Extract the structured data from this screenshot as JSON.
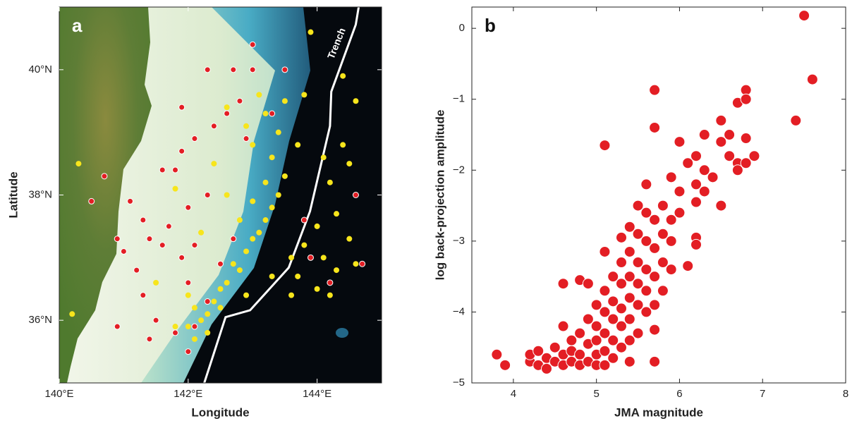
{
  "chart_data": [
    {
      "type": "map",
      "panel_label": "a",
      "xlabel": "Longitude",
      "ylabel": "Latitude",
      "xlim": [
        140,
        145
      ],
      "ylim": [
        35,
        41
      ],
      "xticks": [
        {
          "value": 140,
          "label": "140°E"
        },
        {
          "value": 142,
          "label": "142°E"
        },
        {
          "value": 144,
          "label": "144°E"
        }
      ],
      "yticks": [
        {
          "value": 36,
          "label": "36°N"
        },
        {
          "value": 38,
          "label": "38°N"
        },
        {
          "value": 40,
          "label": "40°N"
        }
      ],
      "trench": {
        "label": "Trench",
        "color": "#ffffff",
        "x": [
          144.645,
          144.6,
          144.22,
          144.2,
          143.89,
          143.56,
          142.96,
          142.58,
          142.25
        ],
        "values": [
          41,
          40.72,
          39.65,
          39.1,
          37.74,
          36.84,
          36.16,
          36.05,
          35.0
        ]
      },
      "series": [
        {
          "color": "#f7e51c",
          "x": [
            142.2,
            142.1,
            142.3,
            142.0,
            142.4,
            142.5,
            142.6,
            142.8,
            142.7,
            142.9,
            143.0,
            143.1,
            143.2,
            143.3,
            143.0,
            143.4,
            143.2,
            143.5,
            143.3,
            143.0,
            142.9,
            143.2,
            143.5,
            143.8,
            142.6,
            143.4,
            143.7,
            144.1,
            144.4,
            144.5,
            144.2,
            144.6,
            144.3,
            144.0,
            143.8,
            144.1,
            144.5,
            144.3,
            144.0,
            143.7,
            144.2,
            144.6,
            143.6,
            143.3,
            142.9,
            142.5,
            142.3,
            141.8,
            142.1,
            141.5,
            141.9,
            142.2,
            142.6,
            142.4,
            141.8,
            140.3,
            140.2,
            143.9,
            144.4,
            144.6,
            143.1,
            142.8,
            143.6,
            142.0
          ],
          "values": [
            36.0,
            36.2,
            36.1,
            35.9,
            36.3,
            36.5,
            36.6,
            36.8,
            36.9,
            37.1,
            37.3,
            37.4,
            37.6,
            37.8,
            37.9,
            38.0,
            38.2,
            38.3,
            38.6,
            38.8,
            39.1,
            39.3,
            39.5,
            39.6,
            39.4,
            39.0,
            38.8,
            38.6,
            38.8,
            38.5,
            38.2,
            38.0,
            37.7,
            37.5,
            37.2,
            37.0,
            37.3,
            36.8,
            36.5,
            36.7,
            36.4,
            36.9,
            36.4,
            36.7,
            36.4,
            36.2,
            35.8,
            35.9,
            35.7,
            36.6,
            37.0,
            37.4,
            38.0,
            38.5,
            38.1,
            38.5,
            36.1,
            40.6,
            39.9,
            39.5,
            39.6,
            37.6,
            37.0,
            36.4
          ]
        },
        {
          "color": "#e31e24",
          "x": [
            142.0,
            141.8,
            141.5,
            141.3,
            141.2,
            141.0,
            140.9,
            141.3,
            141.1,
            140.7,
            140.5,
            141.6,
            141.9,
            142.1,
            142.4,
            142.6,
            142.8,
            142.3,
            142.7,
            143.0,
            143.5,
            141.9,
            141.8,
            142.0,
            141.7,
            141.9,
            142.0,
            142.3,
            142.1,
            141.6,
            143.8,
            143.9,
            144.6,
            144.7,
            144.2,
            142.7,
            142.5,
            141.4,
            142.9,
            143.3,
            140.9,
            141.4,
            142.1,
            142.3,
            143.0
          ],
          "values": [
            35.5,
            35.8,
            36.0,
            36.4,
            36.8,
            37.1,
            37.3,
            37.6,
            37.9,
            38.3,
            37.9,
            38.4,
            38.7,
            38.9,
            39.1,
            39.3,
            39.5,
            40.0,
            40.0,
            40.0,
            40.0,
            39.4,
            38.4,
            37.8,
            37.5,
            37.0,
            36.6,
            36.3,
            35.9,
            37.2,
            37.6,
            37.0,
            38.0,
            36.9,
            36.6,
            37.3,
            36.9,
            37.3,
            38.9,
            39.3,
            35.9,
            35.7,
            37.2,
            38.0,
            40.4
          ]
        }
      ]
    },
    {
      "type": "scatter",
      "panel_label": "b",
      "xlabel": "JMA magnitude",
      "ylabel": "log back-projection amplitude",
      "xlim": [
        3.5,
        8
      ],
      "ylim": [
        -5,
        0.3
      ],
      "xticks": [
        4,
        5,
        6,
        7,
        8
      ],
      "yticks": [
        {
          "value": -5,
          "label": "−5"
        },
        {
          "value": -4,
          "label": "−4"
        },
        {
          "value": -3,
          "label": "−3"
        },
        {
          "value": -2,
          "label": "−2"
        },
        {
          "value": -1,
          "label": "−1"
        },
        0
      ],
      "series": [
        {
          "color": "#e31e24",
          "x": [
            3.8,
            3.9,
            4.2,
            4.2,
            4.3,
            4.3,
            4.4,
            4.4,
            4.5,
            4.5,
            4.6,
            4.6,
            4.6,
            4.6,
            4.7,
            4.7,
            4.7,
            4.8,
            4.8,
            4.8,
            4.8,
            4.9,
            4.9,
            4.9,
            4.9,
            5.0,
            5.0,
            5.0,
            5.0,
            5.0,
            5.1,
            5.1,
            5.1,
            5.1,
            5.1,
            5.1,
            5.1,
            5.2,
            5.2,
            5.2,
            5.2,
            5.2,
            5.3,
            5.3,
            5.3,
            5.3,
            5.3,
            5.3,
            5.4,
            5.4,
            5.4,
            5.4,
            5.4,
            5.4,
            5.4,
            5.5,
            5.5,
            5.5,
            5.5,
            5.5,
            5.5,
            5.6,
            5.6,
            5.6,
            5.6,
            5.6,
            5.6,
            5.7,
            5.7,
            5.7,
            5.7,
            5.7,
            5.7,
            5.7,
            5.7,
            5.8,
            5.8,
            5.8,
            5.8,
            5.9,
            5.9,
            5.9,
            5.9,
            6.0,
            6.0,
            6.0,
            6.1,
            6.1,
            6.2,
            6.2,
            6.2,
            6.2,
            6.2,
            6.3,
            6.3,
            6.3,
            6.4,
            6.5,
            6.5,
            6.5,
            6.6,
            6.6,
            6.7,
            6.7,
            6.7,
            6.8,
            6.8,
            6.8,
            6.8,
            6.9,
            7.4,
            7.5,
            7.6
          ],
          "values": [
            -4.6,
            -4.75,
            -4.7,
            -4.6,
            -4.55,
            -4.75,
            -4.65,
            -4.8,
            -4.7,
            -4.5,
            -4.6,
            -4.75,
            -3.6,
            -4.2,
            -4.4,
            -4.7,
            -4.55,
            -3.55,
            -4.3,
            -4.6,
            -4.75,
            -3.6,
            -4.1,
            -4.45,
            -4.7,
            -3.9,
            -4.2,
            -4.4,
            -4.6,
            -4.75,
            -3.15,
            -3.7,
            -4.0,
            -4.3,
            -4.55,
            -4.75,
            -1.65,
            -3.5,
            -3.85,
            -4.1,
            -4.4,
            -4.65,
            -2.95,
            -3.3,
            -3.6,
            -3.95,
            -4.2,
            -4.5,
            -2.8,
            -3.15,
            -3.5,
            -3.8,
            -4.1,
            -4.4,
            -4.7,
            -2.5,
            -2.9,
            -3.3,
            -3.6,
            -3.9,
            -4.3,
            -2.2,
            -2.6,
            -3.0,
            -3.4,
            -3.7,
            -4.0,
            -0.87,
            -1.4,
            -2.7,
            -3.1,
            -3.5,
            -3.9,
            -4.25,
            -4.7,
            -2.5,
            -2.9,
            -3.3,
            -3.7,
            -2.1,
            -2.7,
            -3.0,
            -3.4,
            -1.6,
            -2.3,
            -2.6,
            -1.9,
            -3.35,
            -1.8,
            -2.2,
            -2.45,
            -2.95,
            -3.05,
            -1.5,
            -2.0,
            -2.3,
            -2.1,
            -1.3,
            -1.6,
            -2.5,
            -1.5,
            -1.8,
            -1.05,
            -1.9,
            -2.0,
            -0.87,
            -1.0,
            -1.55,
            -1.9,
            -1.8,
            -1.3,
            0.18,
            -0.72
          ]
        }
      ]
    }
  ]
}
